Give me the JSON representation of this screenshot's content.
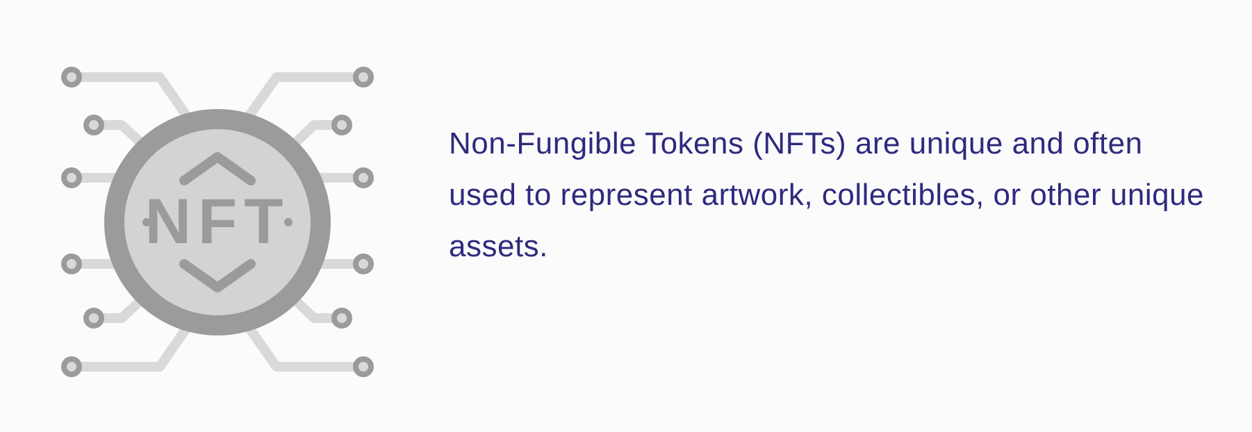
{
  "icon": {
    "name": "nft-coin-circuit-icon",
    "label": "NFT",
    "colors": {
      "dark": "#9b9b9b",
      "light": "#d3d3d3",
      "traces": "#d9d9d9"
    }
  },
  "description": {
    "text": "Non-Fungible Tokens (NFTs) are unique and often used to represent artwork, collectibles, or other unique assets.",
    "color": "#2e2a7e"
  },
  "background": "#fbfbfc"
}
